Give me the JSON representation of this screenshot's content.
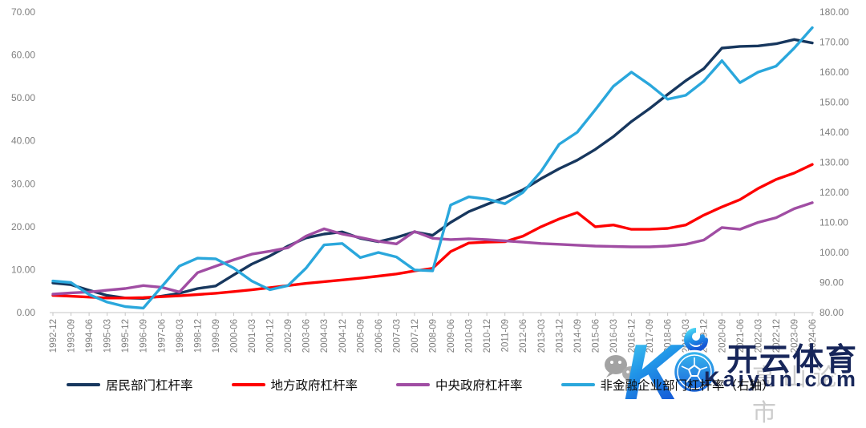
{
  "chart_data": {
    "type": "line",
    "title": "",
    "grid": false,
    "background": "#ffffff",
    "legend_position": "bottom",
    "axis_text_color": "#7f7f7f",
    "axis_line_color": "#c6c6c6",
    "x_tick_labels": [
      "1992-12",
      "1993-09",
      "1994-06",
      "1995-03",
      "1995-12",
      "1996-09",
      "1997-06",
      "1998-03",
      "1998-12",
      "1999-09",
      "2000-06",
      "2001-03",
      "2001-12",
      "2002-09",
      "2003-06",
      "2004-03",
      "2004-12",
      "2005-09",
      "2006-06",
      "2007-03",
      "2007-12",
      "2008-09",
      "2009-06",
      "2010-03",
      "2010-12",
      "2011-09",
      "2012-06",
      "2013-03",
      "2013-12",
      "2014-09",
      "2015-06",
      "2016-03",
      "2016-12",
      "2017-09",
      "2018-06",
      "2019-03",
      "2019-12",
      "2020-09",
      "2021-06",
      "2022-03",
      "2022-12",
      "2023-09",
      "2024-06"
    ],
    "left_axis": {
      "min": 0,
      "max": 70,
      "step": 10,
      "tick_labels": [
        "70.00",
        "60.00",
        "50.00",
        "40.00",
        "30.00",
        "20.00",
        "10.00",
        "0.00"
      ]
    },
    "right_axis": {
      "min": 80,
      "max": 180,
      "step": 10,
      "tick_labels": [
        "180.00",
        "170.00",
        "160.00",
        "150.00",
        "140.00",
        "130.00",
        "120.00",
        "110.00",
        "100.00",
        "90.00",
        "80.00"
      ]
    },
    "series": [
      {
        "id": "household",
        "name": "居民部门杠杆率",
        "axis": "left",
        "color": "#17375e",
        "values": [
          6.9,
          6.5,
          5.2,
          4.0,
          3.4,
          3.3,
          3.8,
          4.5,
          5.6,
          6.2,
          8.8,
          11.3,
          13.2,
          15.5,
          17.4,
          18.3,
          18.8,
          17.3,
          16.5,
          17.5,
          18.8,
          18.0,
          21.0,
          23.5,
          25.2,
          26.8,
          28.6,
          31.2,
          33.5,
          35.5,
          38.0,
          41.0,
          44.5,
          47.5,
          50.8,
          54.0,
          56.8,
          61.6,
          62.0,
          62.1,
          62.6,
          63.6,
          62.8
        ]
      },
      {
        "id": "local-government",
        "name": "地方政府杠杆率",
        "axis": "left",
        "color": "#fe0000",
        "values": [
          4.0,
          3.8,
          3.6,
          3.4,
          3.4,
          3.5,
          3.7,
          3.9,
          4.2,
          4.5,
          4.9,
          5.3,
          5.8,
          6.3,
          6.8,
          7.2,
          7.6,
          8.0,
          8.5,
          9.0,
          9.7,
          10.3,
          14.2,
          16.2,
          16.4,
          16.5,
          17.8,
          20.0,
          21.8,
          23.3,
          20.0,
          20.4,
          19.4,
          19.4,
          19.6,
          20.4,
          22.7,
          24.6,
          26.3,
          28.9,
          31.0,
          32.5,
          34.5
        ]
      },
      {
        "id": "central-government",
        "name": "中央政府杠杆率",
        "axis": "left",
        "color": "#a04da3",
        "values": [
          4.3,
          4.6,
          4.8,
          5.2,
          5.6,
          6.3,
          5.9,
          4.8,
          9.3,
          10.8,
          12.3,
          13.6,
          14.3,
          15.1,
          17.8,
          19.5,
          18.3,
          17.5,
          16.6,
          16.0,
          18.9,
          17.3,
          17.0,
          17.2,
          17.0,
          16.7,
          16.4,
          16.1,
          15.9,
          15.7,
          15.5,
          15.4,
          15.3,
          15.3,
          15.5,
          15.9,
          16.9,
          19.8,
          19.4,
          21.0,
          22.1,
          24.2,
          25.6
        ]
      },
      {
        "id": "non-financial-corporate",
        "name": "非金融企业部门杠杆率（右轴）",
        "axis": "right",
        "color": "#2aa7dc",
        "values": [
          90.5,
          90.0,
          86.0,
          83.5,
          82.0,
          81.5,
          88.5,
          95.5,
          98.1,
          97.9,
          94.8,
          90.5,
          87.6,
          89.0,
          94.8,
          102.5,
          103.0,
          98.3,
          100.0,
          98.5,
          94.2,
          93.9,
          115.8,
          118.5,
          117.8,
          116.2,
          120.0,
          127.0,
          136.0,
          140.0,
          147.5,
          155.3,
          160.0,
          155.8,
          151.0,
          152.3,
          157.0,
          163.8,
          156.5,
          160.0,
          162.0,
          168.0,
          174.8
        ]
      }
    ]
  },
  "watermark": {
    "brand_text": "开云体育",
    "brand_url_text": "Kaiyun.com",
    "background_text": "高山论市",
    "brand_color": "#17265a",
    "logo_gradient_top": "#4fd9f4",
    "logo_gradient_bottom": "#1557d6"
  }
}
